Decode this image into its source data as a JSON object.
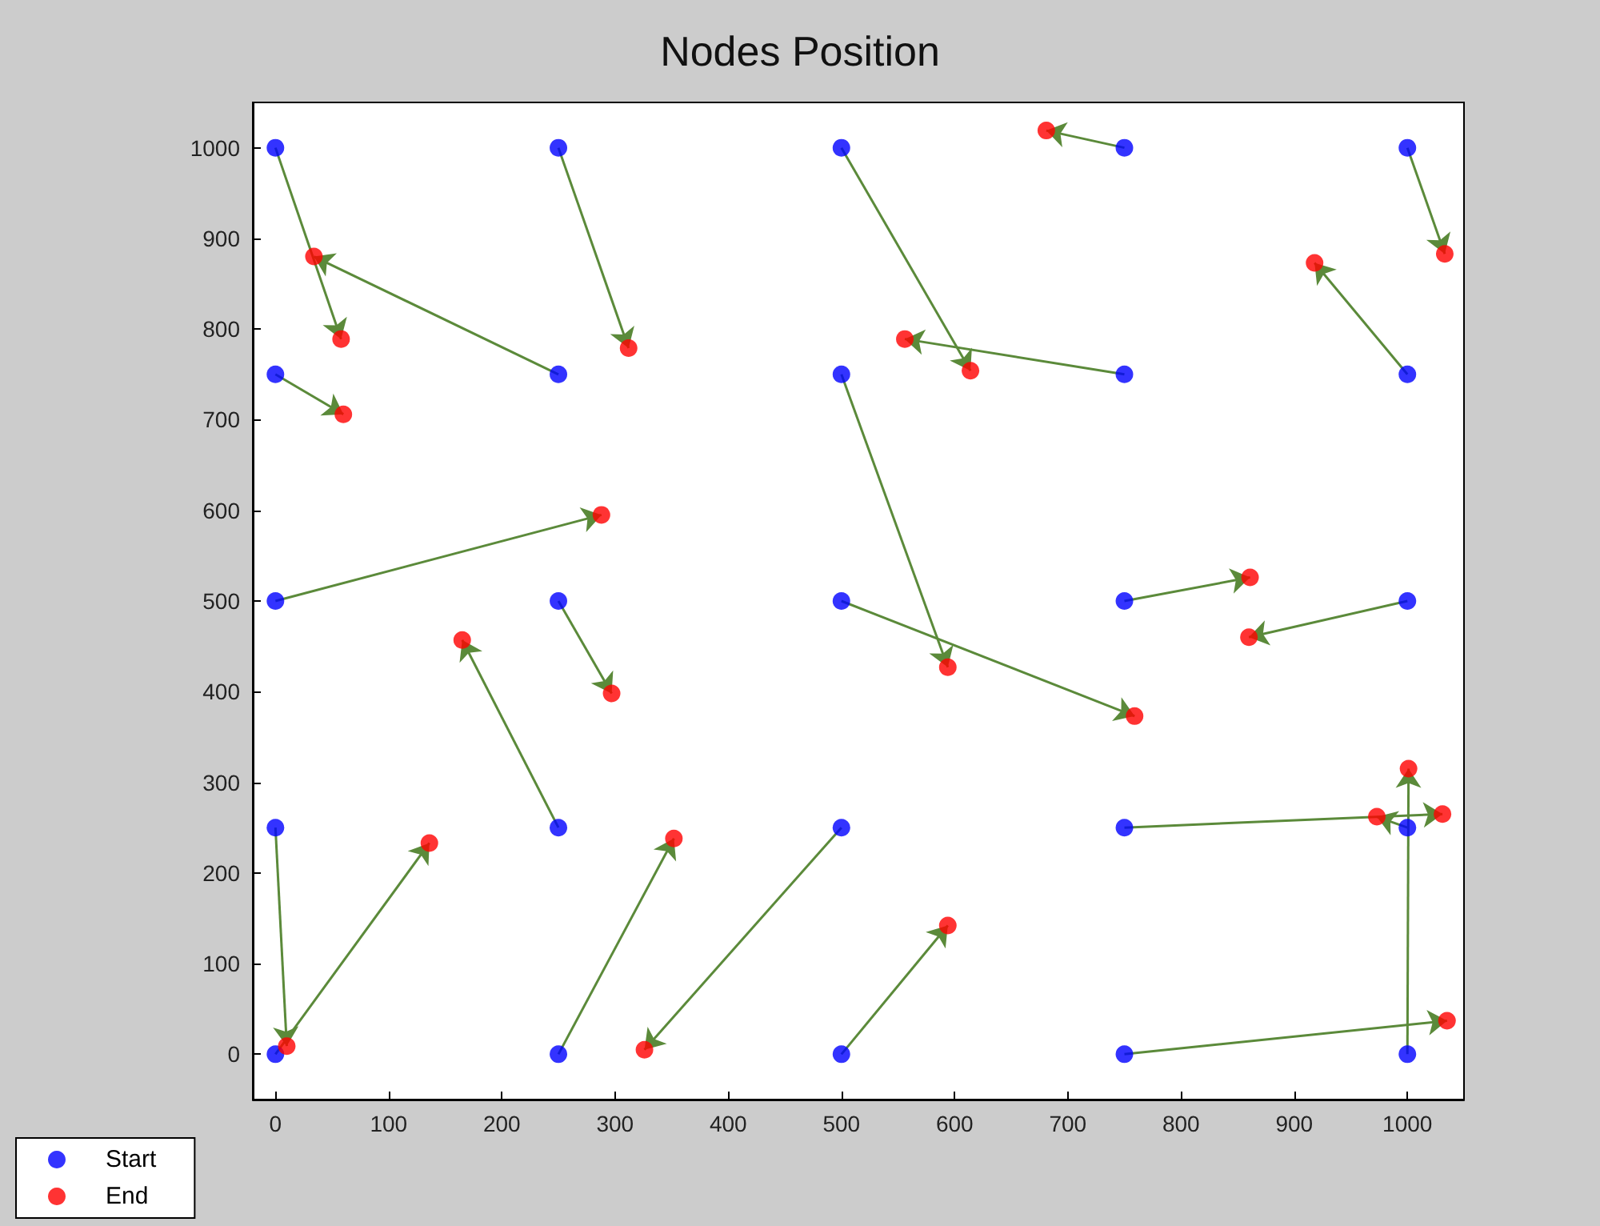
{
  "chart_data": {
    "type": "scatter",
    "title": "Nodes Position",
    "series": [
      {
        "name": "Start",
        "color": "#0000ff",
        "x": [
          0,
          250,
          500,
          750,
          1000,
          0,
          250,
          500,
          750,
          1000,
          0,
          250,
          500,
          750,
          1000,
          0,
          250,
          500,
          750,
          1000,
          0,
          250,
          500,
          750,
          1000
        ],
        "values": [
          1000,
          1000,
          1000,
          1000,
          1000,
          750,
          750,
          750,
          750,
          750,
          500,
          500,
          500,
          500,
          500,
          250,
          250,
          250,
          250,
          250,
          0,
          0,
          0,
          0,
          0
        ]
      },
      {
        "name": "End",
        "color": "#ff0000",
        "x": [
          58,
          312,
          614,
          681,
          1033,
          60,
          34,
          594,
          556,
          918,
          288,
          297,
          759,
          861,
          860,
          10,
          165,
          326,
          1031,
          973,
          136,
          352,
          594,
          1035,
          1001
        ],
        "values": [
          789,
          779,
          754,
          1019,
          883,
          706,
          880,
          427,
          789,
          873,
          595,
          398,
          373,
          526,
          460,
          9,
          457,
          5,
          265,
          262,
          233,
          238,
          142,
          37,
          315
        ]
      }
    ],
    "xlim": [
      -20,
      1050
    ],
    "ylim": [
      -50,
      1050
    ],
    "xticks": [
      0,
      100,
      200,
      300,
      400,
      500,
      600,
      700,
      800,
      900,
      1000
    ],
    "yticks": [
      0,
      100,
      200,
      300,
      400,
      500,
      600,
      700,
      800,
      900,
      1000
    ],
    "grid": false,
    "legend": "bottom left",
    "marker": "circle"
  }
}
